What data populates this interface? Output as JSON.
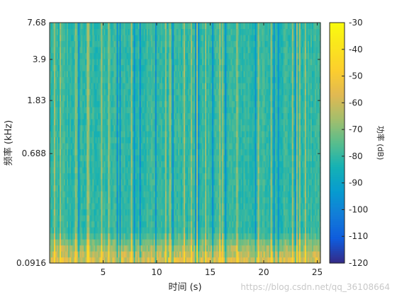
{
  "chart_data": {
    "type": "heatmap",
    "title": "",
    "xlabel": "时间 (s)",
    "ylabel": "频率 (kHz)",
    "x_ticks": [
      5,
      10,
      15,
      20,
      25
    ],
    "x_tick_labels": [
      "5",
      "10",
      "15",
      "20",
      "25"
    ],
    "xlim": [
      0,
      25.3
    ],
    "y_scale": "log",
    "y_ticks": [
      0.0916,
      0.688,
      1.83,
      3.9,
      7.68
    ],
    "y_tick_labels": [
      "0.0916",
      "0.688",
      "1.83",
      "3.9",
      "7.68"
    ],
    "ylim": [
      0.0916,
      7.68
    ],
    "colorbar": {
      "label": "功率 (dB)",
      "ticks": [
        -30,
        -40,
        -50,
        -60,
        -70,
        -80,
        -90,
        -100,
        -110,
        -120
      ],
      "tick_labels": [
        "-30",
        "-40",
        "-50",
        "-60",
        "-70",
        "-80",
        "-90",
        "-100",
        "-110",
        "-120"
      ],
      "range": [
        -120,
        -30
      ],
      "colormap": "parula"
    },
    "z_typical_db": -80,
    "z_low_freq_max_db": -45,
    "z_min_db": -120,
    "grid": false
  },
  "watermark": "https://blog.csdn.net/qq_36108664",
  "colors": {
    "background": "#ffffff",
    "axis": "#262626"
  }
}
